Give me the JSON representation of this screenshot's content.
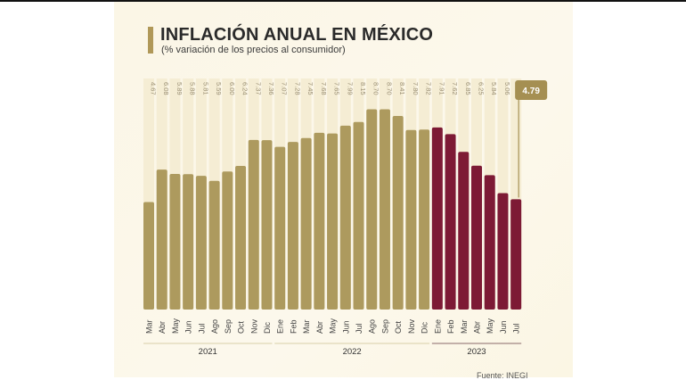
{
  "chart_data": {
    "type": "bar",
    "title": "INFLACIÓN ANUAL EN MÉXICO",
    "subtitle": "(% variación de los precios al consumidor)",
    "xlabel": "",
    "ylabel": "",
    "ylim": [
      0,
      9
    ],
    "grid": false,
    "source": "Fuente: INEGI",
    "highlight": {
      "label": "4.79",
      "category_index": 28
    },
    "groups": [
      {
        "year": "2021",
        "color": "#ad9a5e",
        "months": [
          "Mar",
          "Abr",
          "May",
          "Jun",
          "Jul",
          "Ago",
          "Sep",
          "Oct",
          "Nov",
          "Dic"
        ],
        "values": [
          4.67,
          6.08,
          5.89,
          5.88,
          5.81,
          5.59,
          6.0,
          6.24,
          7.37,
          7.36
        ],
        "labels": [
          "4.67",
          "6.08",
          "5.89",
          "5.88",
          "5.81",
          "5.59",
          "6.00",
          "6.24",
          "7.37",
          "7.36"
        ]
      },
      {
        "year": "2022",
        "color": "#ad9a5e",
        "months": [
          "Ene",
          "Feb",
          "Mar",
          "Abr",
          "May",
          "Jun",
          "Jul",
          "Ago",
          "Sep",
          "Oct",
          "Nov",
          "Dic"
        ],
        "values": [
          7.07,
          7.28,
          7.45,
          7.68,
          7.65,
          7.99,
          8.15,
          8.7,
          8.7,
          8.41,
          7.8,
          7.82
        ],
        "labels": [
          "7.07",
          "7.28",
          "7.45",
          "7.68",
          "7.65",
          "7.99",
          "8.15",
          "8.70",
          "8.70",
          "8.41",
          "7.80",
          "7.82"
        ]
      },
      {
        "year": "2023",
        "color": "#7d1a35",
        "months": [
          "Ene",
          "Feb",
          "Mar",
          "Abr",
          "May",
          "Jun",
          "Jul"
        ],
        "values": [
          7.91,
          7.62,
          6.85,
          6.25,
          5.84,
          5.06,
          4.79
        ],
        "labels": [
          "7.91",
          "7.62",
          "6.85",
          "6.25",
          "5.84",
          "5.06",
          ""
        ]
      }
    ]
  },
  "colors": {
    "gold": "#ad9a5e",
    "wine": "#7d1a35",
    "track": "#f5edd4",
    "badge": "#a58f52"
  }
}
